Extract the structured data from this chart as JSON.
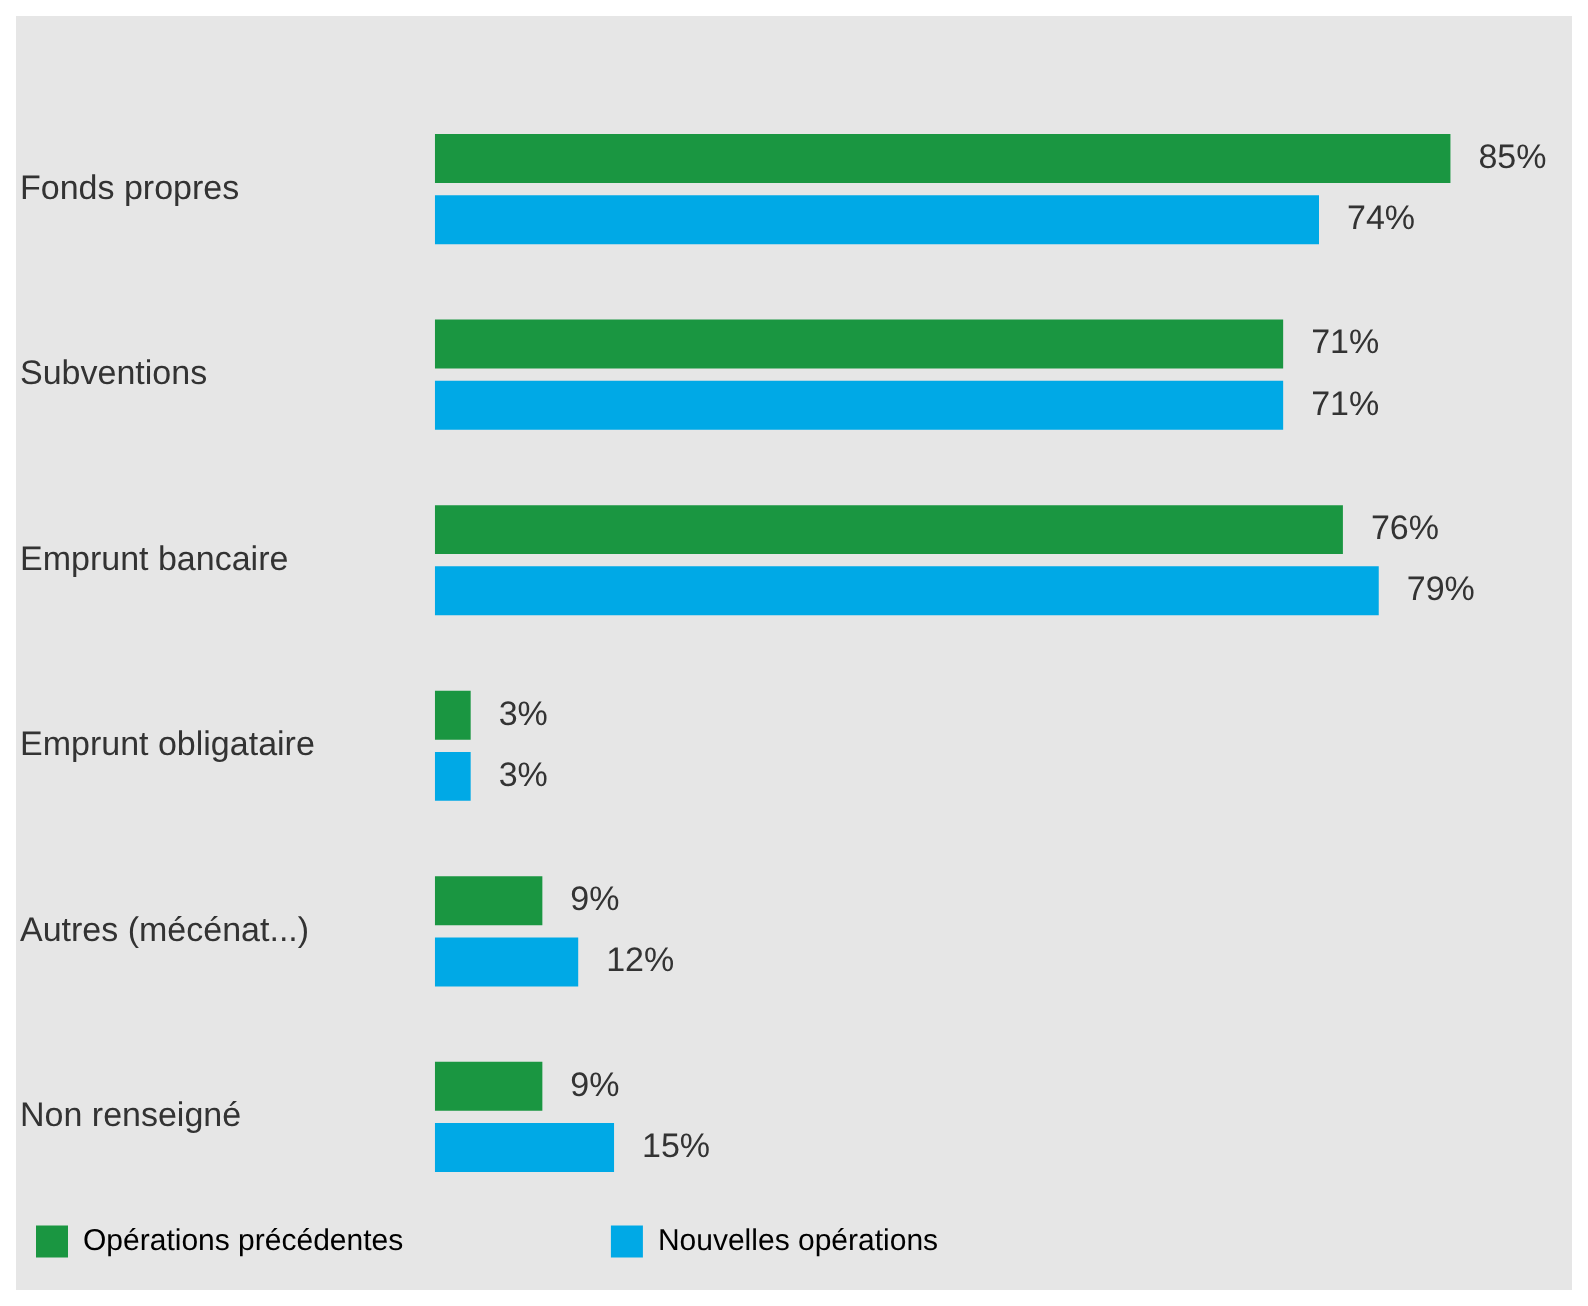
{
  "chart_data": {
    "type": "bar",
    "orientation": "horizontal",
    "categories": [
      "Fonds propres",
      "Subventions",
      "Emprunt bancaire",
      "Emprunt obligataire",
      "Autres (mécénat...)",
      "Non renseigné"
    ],
    "series": [
      {
        "name": "Opérations précédentes",
        "color": "#1a9641",
        "values": [
          85,
          71,
          76,
          3,
          9,
          9
        ],
        "value_labels": [
          "85%",
          "71%",
          "76%",
          "3%",
          "9%",
          "9%"
        ]
      },
      {
        "name": "Nouvelles opérations",
        "color": "#00a9e6",
        "values": [
          74,
          71,
          79,
          3,
          12,
          15
        ],
        "value_labels": [
          "74%",
          "71%",
          "79%",
          "3%",
          "12%",
          "15%"
        ]
      }
    ],
    "grid": false,
    "legend": "bottom left"
  }
}
